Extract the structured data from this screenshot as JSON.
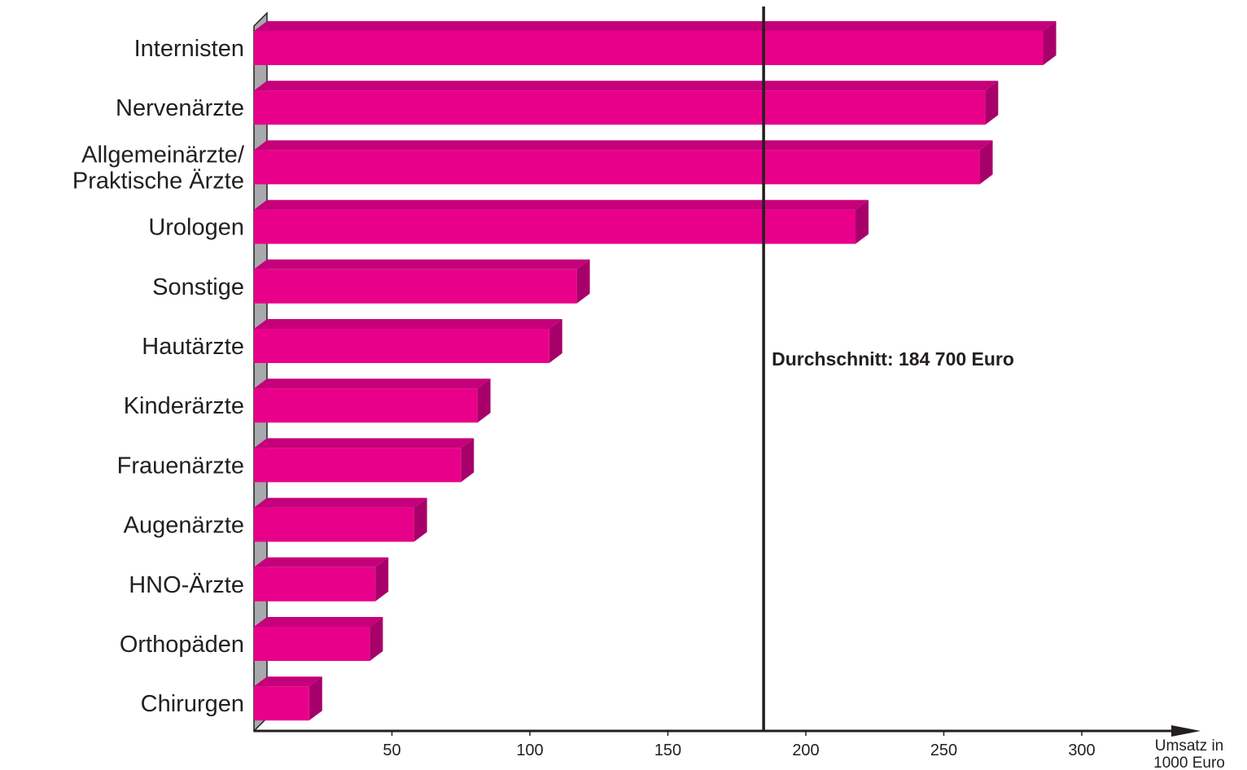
{
  "chart_data": {
    "type": "bar",
    "orientation": "horizontal",
    "categories": [
      "Internisten",
      "Nervenärzte",
      "Allgemeinärzte/\nPraktische Ärzte",
      "Urologen",
      "Sonstige",
      "Hautärzte",
      "Kinderärzte",
      "Frauenärzte",
      "Augenärzte",
      "HNO-Ärzte",
      "Orthopäden",
      "Chirurgen"
    ],
    "values": [
      286,
      265,
      263,
      218,
      117,
      107,
      81,
      75,
      58,
      44,
      42,
      20
    ],
    "xlim": [
      0,
      340
    ],
    "xticks": [
      50,
      100,
      150,
      200,
      250,
      300
    ],
    "xlabel": "Umsatz in\n1000 Euro",
    "ylabel": "",
    "title": "",
    "reference_line": {
      "value": 184.7,
      "label": "Durchschnitt: 184 700 Euro"
    },
    "grid": false,
    "legend": "none",
    "style": "3d-bars"
  },
  "colors": {
    "bar_front": "#e8008a",
    "bar_top": "#c5007a",
    "bar_side": "#a8006a",
    "wall": "#a7a9ac",
    "axis": "#231f20"
  }
}
